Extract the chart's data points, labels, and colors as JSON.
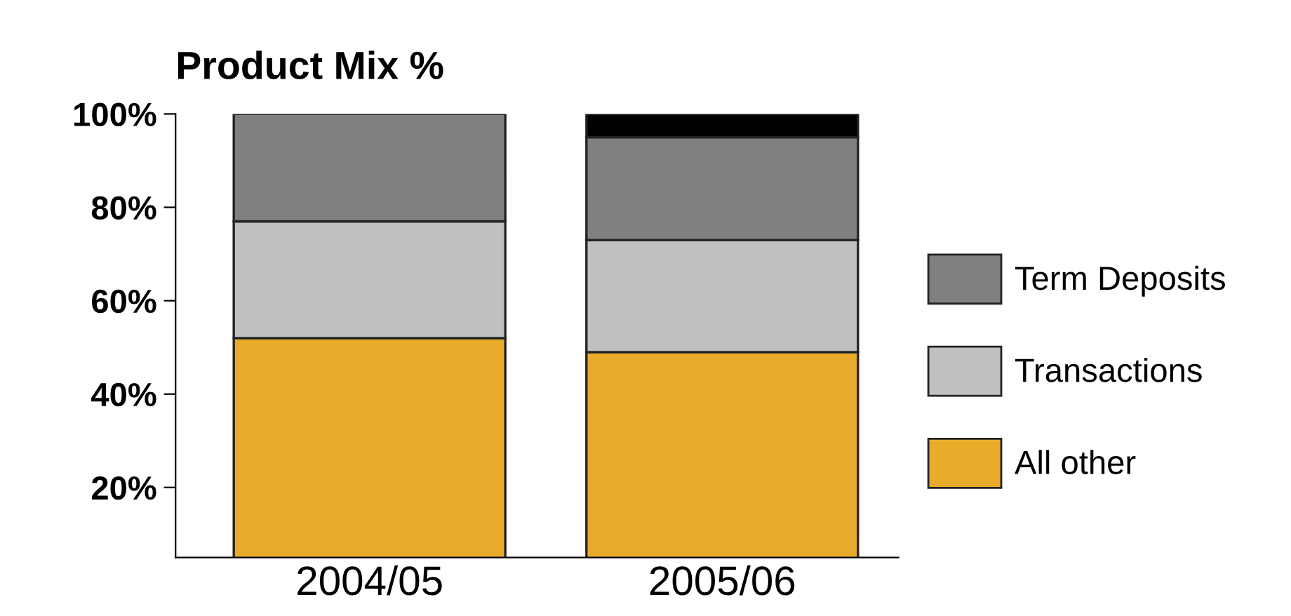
{
  "chart_data": {
    "type": "bar",
    "title": "Product Mix %",
    "stacked": true,
    "categories": [
      "2004/05",
      "2005/06"
    ],
    "series": [
      {
        "name": "All other",
        "color": "#e8ac2a",
        "values": [
          52,
          49
        ]
      },
      {
        "name": "Transactions",
        "color": "#c0c0c0",
        "values": [
          25,
          24
        ]
      },
      {
        "name": "Term Deposits",
        "color": "#808080",
        "values": [
          23,
          22
        ]
      },
      {
        "color": "#000000",
        "values": [
          null,
          5
        ]
      }
    ],
    "ylim": [
      5,
      100
    ],
    "yticks": [
      {
        "value": 20,
        "label": "20%"
      },
      {
        "value": 40,
        "label": "40%"
      },
      {
        "value": 60,
        "label": "60%"
      },
      {
        "value": 80,
        "label": "80%"
      },
      {
        "value": 100,
        "label": "100%"
      }
    ],
    "grid": false,
    "legend": "right"
  }
}
